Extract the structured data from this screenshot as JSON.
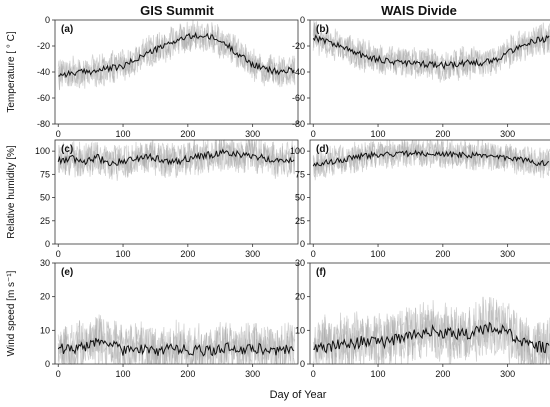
{
  "figure": {
    "column_titles": [
      "GIS Summit",
      "WAIS Divide"
    ],
    "xlabel": "Day of Year",
    "colors": {
      "obs": "#9e9e9e",
      "mean": "#111111",
      "axis": "#333333"
    }
  },
  "chart_data": [
    {
      "type": "line",
      "panel": "(a)",
      "site": "GIS Summit",
      "ylabel": "Temperature [ ° C]",
      "xlim": [
        -5,
        370
      ],
      "ylim": [
        -80,
        0
      ],
      "xticks": [
        "0",
        "100",
        "200",
        "300"
      ],
      "yticks": [
        "-80",
        "-60",
        "-40",
        "-20",
        "0"
      ],
      "x": [
        0,
        20,
        40,
        60,
        80,
        100,
        120,
        140,
        160,
        180,
        200,
        220,
        240,
        260,
        280,
        300,
        320,
        340,
        365
      ],
      "series": [
        {
          "values": [
            -42,
            -41,
            -40,
            -39,
            -37,
            -36,
            -30,
            -25,
            -21,
            -16,
            -13,
            -12,
            -14,
            -19,
            -27,
            -34,
            -38,
            -40,
            -38
          ]
        }
      ],
      "spread": 14
    },
    {
      "type": "line",
      "panel": "(b)",
      "site": "WAIS Divide",
      "ylabel": "",
      "xlim": [
        -5,
        370
      ],
      "ylim": [
        -80,
        0
      ],
      "xticks": [
        "0",
        "100",
        "200",
        "300"
      ],
      "yticks": [
        "-80",
        "-60",
        "-40",
        "-20",
        "0"
      ],
      "x": [
        0,
        20,
        40,
        60,
        80,
        100,
        120,
        140,
        160,
        180,
        200,
        220,
        240,
        260,
        280,
        300,
        320,
        340,
        365
      ],
      "series": [
        {
          "values": [
            -13,
            -16,
            -20,
            -24,
            -28,
            -30,
            -32,
            -33,
            -34,
            -34,
            -35,
            -34,
            -33,
            -33,
            -31,
            -25,
            -20,
            -16,
            -14
          ]
        }
      ],
      "spread": 14
    },
    {
      "type": "line",
      "panel": "(c)",
      "site": "GIS Summit",
      "ylabel": "Relative humidity [%]",
      "xlim": [
        -5,
        370
      ],
      "ylim": [
        0,
        112
      ],
      "xticks": [
        "0",
        "100",
        "200",
        "300"
      ],
      "yticks": [
        "0",
        "25",
        "50",
        "75",
        "100"
      ],
      "x": [
        0,
        20,
        40,
        60,
        80,
        100,
        120,
        140,
        160,
        180,
        200,
        220,
        240,
        260,
        280,
        300,
        320,
        340,
        365
      ],
      "series": [
        {
          "values": [
            90,
            92,
            88,
            93,
            87,
            90,
            92,
            95,
            90,
            88,
            92,
            94,
            97,
            99,
            96,
            95,
            92,
            90,
            92
          ]
        }
      ],
      "spread": 22
    },
    {
      "type": "line",
      "panel": "(d)",
      "site": "WAIS Divide",
      "ylabel": "",
      "xlim": [
        -5,
        370
      ],
      "ylim": [
        0,
        112
      ],
      "xticks": [
        "0",
        "100",
        "200",
        "300"
      ],
      "yticks": [
        "0",
        "25",
        "50",
        "75",
        "100"
      ],
      "x": [
        0,
        20,
        40,
        60,
        80,
        100,
        120,
        140,
        160,
        180,
        200,
        220,
        240,
        260,
        280,
        300,
        320,
        340,
        365
      ],
      "series": [
        {
          "values": [
            85,
            88,
            90,
            93,
            95,
            96,
            97,
            97,
            98,
            97,
            97,
            96,
            96,
            95,
            94,
            93,
            91,
            88,
            87
          ]
        }
      ],
      "spread": 18
    },
    {
      "type": "line",
      "panel": "(e)",
      "site": "GIS Summit",
      "ylabel": "Wind speed [m s⁻¹]",
      "xlim": [
        -5,
        370
      ],
      "ylim": [
        0,
        30
      ],
      "xticks": [
        "0",
        "100",
        "200",
        "300"
      ],
      "yticks": [
        "0",
        "10",
        "20",
        "30"
      ],
      "x": [
        0,
        20,
        40,
        60,
        80,
        100,
        120,
        140,
        160,
        180,
        200,
        220,
        240,
        260,
        280,
        300,
        320,
        340,
        365
      ],
      "series": [
        {
          "values": [
            5,
            4,
            5,
            7,
            6,
            4,
            5,
            4,
            4,
            5,
            4,
            4,
            4,
            5,
            4,
            5,
            4,
            4,
            5
          ]
        }
      ],
      "spread": 9
    },
    {
      "type": "line",
      "panel": "(f)",
      "site": "WAIS Divide",
      "ylabel": "",
      "xlim": [
        -5,
        370
      ],
      "ylim": [
        0,
        30
      ],
      "xticks": [
        "0",
        "100",
        "200",
        "300"
      ],
      "yticks": [
        "0",
        "10",
        "20",
        "30"
      ],
      "x": [
        0,
        20,
        40,
        60,
        80,
        100,
        120,
        140,
        160,
        180,
        200,
        220,
        240,
        260,
        280,
        300,
        320,
        340,
        365
      ],
      "series": [
        {
          "values": [
            5,
            5,
            6,
            6,
            7,
            6,
            7,
            8,
            9,
            10,
            9,
            9,
            9,
            10,
            11,
            9,
            7,
            5,
            5
          ]
        }
      ],
      "spread": 10
    }
  ]
}
